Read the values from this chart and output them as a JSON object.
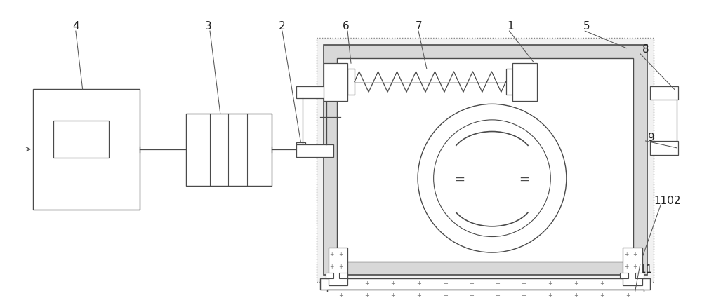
{
  "bg_color": "#ffffff",
  "line_color": "#4a4a4a",
  "label_color": "#222222",
  "figsize": [
    10.0,
    4.25
  ],
  "dpi": 100
}
